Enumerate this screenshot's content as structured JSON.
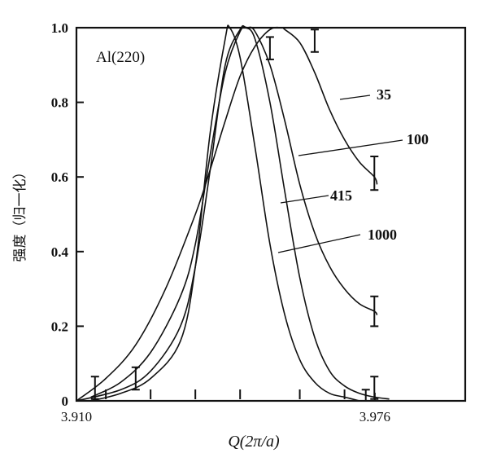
{
  "chart_data": {
    "type": "line",
    "title": "",
    "panel_label": "Al(220)",
    "xlabel": "Q(2π/a)",
    "ylabel": "强度（归一化）",
    "xlim": [
      3.91,
      3.996
    ],
    "ylim": [
      0,
      1.0
    ],
    "x_tick_labels": [
      {
        "value": 3.91,
        "label": "3.910"
      },
      {
        "value": 3.976,
        "label": "3.976"
      }
    ],
    "x_minor_ticks": [
      3.9165,
      3.9264,
      3.9363,
      3.9462,
      3.9594,
      3.9693
    ],
    "y_ticks": [
      {
        "value": 0,
        "label": "0"
      },
      {
        "value": 0.2,
        "label": "0.2"
      },
      {
        "value": 0.4,
        "label": "0.4"
      },
      {
        "value": 0.6,
        "label": "0.6"
      },
      {
        "value": 0.8,
        "label": "0.8"
      },
      {
        "value": 1.0,
        "label": "1.0"
      }
    ],
    "grid": false,
    "series": [
      {
        "name": "35",
        "x": [
          3.91,
          3.9165,
          3.9231,
          3.9297,
          3.9363,
          3.9396,
          3.9429,
          3.9462,
          3.9495,
          3.9528,
          3.9554,
          3.9561,
          3.9594,
          3.9627,
          3.966,
          3.9693,
          3.9726,
          3.9759,
          3.9765
        ],
        "y": [
          0.0,
          0.06,
          0.15,
          0.3,
          0.5,
          0.62,
          0.75,
          0.87,
          0.95,
          0.995,
          1.0,
          0.995,
          0.96,
          0.88,
          0.78,
          0.7,
          0.64,
          0.6,
          0.58
        ]
      },
      {
        "name": "100",
        "x": [
          3.9132,
          3.9198,
          3.9264,
          3.933,
          3.9363,
          3.9396,
          3.9429,
          3.9462,
          3.9478,
          3.9495,
          3.9528,
          3.9561,
          3.9594,
          3.9627,
          3.966,
          3.9693,
          3.9726,
          3.9759,
          3.9765
        ],
        "y": [
          0.01,
          0.05,
          0.13,
          0.28,
          0.42,
          0.66,
          0.88,
          0.99,
          1.0,
          0.99,
          0.9,
          0.75,
          0.58,
          0.45,
          0.36,
          0.3,
          0.26,
          0.24,
          0.23
        ]
      },
      {
        "name": "415",
        "x": [
          3.91,
          3.9198,
          3.9264,
          3.933,
          3.9363,
          3.9396,
          3.9429,
          3.9462,
          3.9474,
          3.9495,
          3.9528,
          3.9561,
          3.9594,
          3.9627,
          3.966,
          3.9693,
          3.9726,
          3.9759,
          3.9792
        ],
        "y": [
          0.0,
          0.03,
          0.08,
          0.2,
          0.36,
          0.62,
          0.9,
          0.995,
          1.0,
          0.97,
          0.8,
          0.56,
          0.33,
          0.17,
          0.08,
          0.04,
          0.02,
          0.01,
          0.005
        ]
      },
      {
        "name": "1000",
        "x": [
          3.9132,
          3.9198,
          3.9264,
          3.933,
          3.9363,
          3.9396,
          3.9429,
          3.9439,
          3.9462,
          3.9495,
          3.9528,
          3.9561,
          3.9594,
          3.9627,
          3.966,
          3.9693,
          3.9726
        ],
        "y": [
          0.0,
          0.02,
          0.06,
          0.16,
          0.36,
          0.72,
          0.97,
          1.0,
          0.92,
          0.68,
          0.42,
          0.23,
          0.11,
          0.05,
          0.02,
          0.01,
          0.0
        ]
      }
    ],
    "error_bars": [
      {
        "x": 3.9141,
        "y": 0.035,
        "err": 0.03
      },
      {
        "x": 3.9231,
        "y": 0.06,
        "err": 0.03
      },
      {
        "x": 3.9528,
        "y": 0.945,
        "err": 0.03
      },
      {
        "x": 3.9627,
        "y": 0.965,
        "err": 0.03
      },
      {
        "x": 3.9759,
        "y": 0.61,
        "err": 0.045
      },
      {
        "x": 3.9759,
        "y": 0.24,
        "err": 0.04
      },
      {
        "x": 3.9759,
        "y": 0.035,
        "err": 0.03
      },
      {
        "x": 3.974,
        "y": 0.015,
        "err": 0.015
      }
    ]
  }
}
